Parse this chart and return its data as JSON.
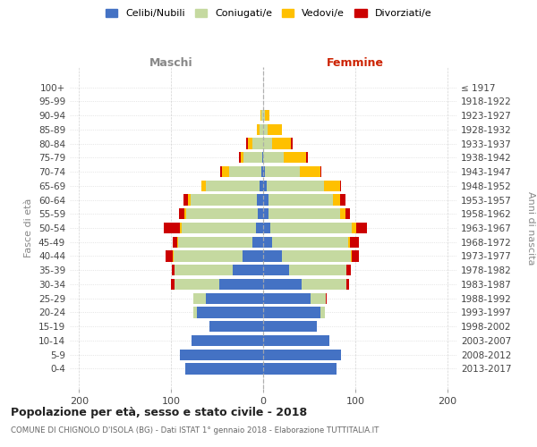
{
  "age_groups": [
    "0-4",
    "5-9",
    "10-14",
    "15-19",
    "20-24",
    "25-29",
    "30-34",
    "35-39",
    "40-44",
    "45-49",
    "50-54",
    "55-59",
    "60-64",
    "65-69",
    "70-74",
    "75-79",
    "80-84",
    "85-89",
    "90-94",
    "95-99",
    "100+"
  ],
  "birth_years": [
    "2013-2017",
    "2008-2012",
    "2003-2007",
    "1998-2002",
    "1993-1997",
    "1988-1992",
    "1983-1987",
    "1978-1982",
    "1973-1977",
    "1968-1972",
    "1963-1967",
    "1958-1962",
    "1953-1957",
    "1948-1952",
    "1943-1947",
    "1938-1942",
    "1933-1937",
    "1928-1932",
    "1923-1927",
    "1918-1922",
    "≤ 1917"
  ],
  "male": {
    "celibi": [
      85,
      90,
      78,
      58,
      72,
      62,
      48,
      33,
      22,
      12,
      8,
      6,
      7,
      4,
      2,
      1,
      0,
      0,
      0,
      0,
      0
    ],
    "coniugati": [
      0,
      0,
      0,
      0,
      4,
      14,
      48,
      63,
      75,
      80,
      80,
      78,
      72,
      58,
      35,
      20,
      12,
      4,
      2,
      0,
      0
    ],
    "vedovi": [
      0,
      0,
      0,
      0,
      0,
      0,
      0,
      0,
      1,
      1,
      2,
      2,
      3,
      5,
      8,
      3,
      5,
      3,
      1,
      0,
      0
    ],
    "divorziati": [
      0,
      0,
      0,
      0,
      0,
      0,
      4,
      3,
      8,
      5,
      18,
      5,
      5,
      0,
      2,
      2,
      1,
      0,
      0,
      0,
      0
    ]
  },
  "female": {
    "nubili": [
      80,
      85,
      72,
      58,
      62,
      52,
      42,
      28,
      20,
      10,
      8,
      6,
      6,
      4,
      2,
      0,
      0,
      0,
      0,
      0,
      0
    ],
    "coniugate": [
      0,
      0,
      0,
      0,
      5,
      16,
      48,
      62,
      75,
      82,
      88,
      78,
      70,
      62,
      38,
      22,
      10,
      5,
      2,
      0,
      0
    ],
    "vedove": [
      0,
      0,
      0,
      0,
      0,
      0,
      0,
      0,
      1,
      2,
      5,
      5,
      8,
      18,
      22,
      25,
      20,
      15,
      5,
      0,
      0
    ],
    "divorziate": [
      0,
      0,
      0,
      0,
      0,
      1,
      3,
      5,
      8,
      10,
      12,
      5,
      5,
      1,
      1,
      2,
      2,
      0,
      0,
      0,
      0
    ]
  },
  "colors": {
    "celibi": "#4472c4",
    "coniugati": "#c5d9a0",
    "vedovi": "#ffc000",
    "divorziati": "#cc0000"
  },
  "title": "Popolazione per età, sesso e stato civile - 2018",
  "subtitle": "COMUNE DI CHIGNOLO D'ISOLA (BG) - Dati ISTAT 1° gennaio 2018 - Elaborazione TUTTITALIA.IT",
  "ylabel_left": "Fasce di età",
  "ylabel_right": "Anni di nascita",
  "xlabel_left": "Maschi",
  "xlabel_right": "Femmine",
  "xlim": [
    -210,
    210
  ],
  "xticks": [
    -200,
    -100,
    0,
    100,
    200
  ],
  "xticklabels": [
    "200",
    "100",
    "0",
    "100",
    "200"
  ],
  "legend_labels": [
    "Celibi/Nubili",
    "Coniugati/e",
    "Vedovi/e",
    "Divorziati/e"
  ],
  "background_color": "#ffffff",
  "grid_color": "#c8c8c8",
  "maschi_color": "#888888",
  "femmine_color": "#cc2200"
}
